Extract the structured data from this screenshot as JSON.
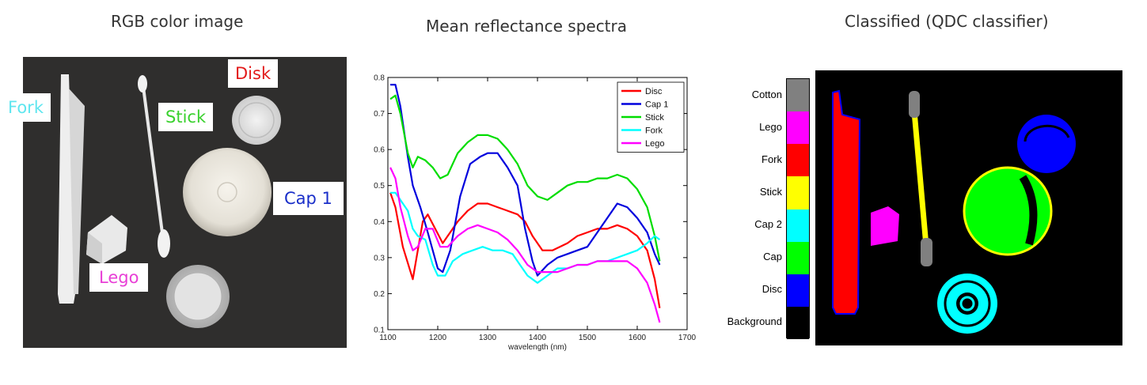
{
  "titles": {
    "photo": "RGB color image",
    "spectra": "Mean reflectance spectra",
    "classified": "Classified (QDC classifier)"
  },
  "photo_labels": {
    "fork": {
      "text": "Fork",
      "color": "#5fe6ef"
    },
    "stick": {
      "text": "Stick",
      "color": "#3ad12e"
    },
    "disk": {
      "text": "Disk",
      "color": "#e21a1a"
    },
    "cap1": {
      "text": "Cap 1",
      "color": "#1a2fc9"
    },
    "lego": {
      "text": "Lego",
      "color": "#e83fd6"
    }
  },
  "chart_data": {
    "type": "line",
    "title": "",
    "xlabel": "wavelength (nm)",
    "ylabel": "",
    "xlim": [
      1100,
      1700
    ],
    "ylim": [
      0.1,
      0.8
    ],
    "xticks": [
      1100,
      1200,
      1300,
      1400,
      1500,
      1600,
      1700
    ],
    "yticks": [
      0.1,
      0.2,
      0.3,
      0.4,
      0.5,
      0.6,
      0.7,
      0.8
    ],
    "legend_position": "top-right",
    "grid": false,
    "series": [
      {
        "name": "Disc",
        "color": "#ff0000",
        "x": [
          1105,
          1115,
          1130,
          1150,
          1160,
          1170,
          1180,
          1195,
          1210,
          1220,
          1240,
          1260,
          1280,
          1300,
          1320,
          1340,
          1360,
          1375,
          1390,
          1410,
          1430,
          1460,
          1480,
          1500,
          1520,
          1540,
          1560,
          1580,
          1600,
          1620,
          1635,
          1645
        ],
        "y": [
          0.48,
          0.44,
          0.33,
          0.24,
          0.32,
          0.4,
          0.42,
          0.38,
          0.34,
          0.36,
          0.4,
          0.43,
          0.45,
          0.45,
          0.44,
          0.43,
          0.42,
          0.4,
          0.36,
          0.32,
          0.32,
          0.34,
          0.36,
          0.37,
          0.38,
          0.38,
          0.39,
          0.38,
          0.36,
          0.32,
          0.24,
          0.16
        ]
      },
      {
        "name": "Cap 1",
        "color": "#0000dd",
        "x": [
          1105,
          1115,
          1125,
          1140,
          1150,
          1165,
          1180,
          1200,
          1210,
          1225,
          1245,
          1265,
          1285,
          1300,
          1320,
          1340,
          1360,
          1375,
          1390,
          1400,
          1420,
          1440,
          1460,
          1480,
          1500,
          1520,
          1540,
          1560,
          1580,
          1600,
          1620,
          1635,
          1645
        ],
        "y": [
          0.78,
          0.78,
          0.72,
          0.58,
          0.5,
          0.44,
          0.37,
          0.27,
          0.26,
          0.32,
          0.47,
          0.56,
          0.58,
          0.59,
          0.59,
          0.55,
          0.5,
          0.38,
          0.29,
          0.25,
          0.28,
          0.3,
          0.31,
          0.32,
          0.33,
          0.37,
          0.41,
          0.45,
          0.44,
          0.41,
          0.37,
          0.31,
          0.28
        ]
      },
      {
        "name": "Stick",
        "color": "#00dd00",
        "x": [
          1105,
          1115,
          1125,
          1140,
          1150,
          1160,
          1175,
          1190,
          1205,
          1220,
          1240,
          1260,
          1280,
          1300,
          1320,
          1340,
          1360,
          1380,
          1400,
          1420,
          1440,
          1460,
          1480,
          1500,
          1520,
          1540,
          1560,
          1580,
          1600,
          1620,
          1635,
          1645
        ],
        "y": [
          0.74,
          0.75,
          0.7,
          0.59,
          0.55,
          0.58,
          0.57,
          0.55,
          0.52,
          0.53,
          0.59,
          0.62,
          0.64,
          0.64,
          0.63,
          0.6,
          0.56,
          0.5,
          0.47,
          0.46,
          0.48,
          0.5,
          0.51,
          0.51,
          0.52,
          0.52,
          0.53,
          0.52,
          0.49,
          0.44,
          0.36,
          0.29
        ]
      },
      {
        "name": "Fork",
        "color": "#00ffff",
        "x": [
          1105,
          1115,
          1125,
          1140,
          1150,
          1160,
          1175,
          1190,
          1200,
          1215,
          1230,
          1250,
          1270,
          1290,
          1310,
          1330,
          1350,
          1365,
          1380,
          1400,
          1420,
          1440,
          1460,
          1480,
          1500,
          1520,
          1540,
          1560,
          1580,
          1600,
          1620,
          1635,
          1645
        ],
        "y": [
          0.48,
          0.48,
          0.46,
          0.43,
          0.38,
          0.36,
          0.35,
          0.28,
          0.25,
          0.25,
          0.29,
          0.31,
          0.32,
          0.33,
          0.32,
          0.32,
          0.31,
          0.28,
          0.25,
          0.23,
          0.25,
          0.27,
          0.27,
          0.28,
          0.28,
          0.29,
          0.29,
          0.3,
          0.31,
          0.32,
          0.34,
          0.36,
          0.35
        ]
      },
      {
        "name": "Lego",
        "color": "#ff00ff",
        "x": [
          1105,
          1115,
          1125,
          1140,
          1150,
          1160,
          1175,
          1190,
          1205,
          1220,
          1240,
          1260,
          1280,
          1300,
          1320,
          1340,
          1360,
          1380,
          1400,
          1420,
          1440,
          1460,
          1480,
          1500,
          1520,
          1540,
          1560,
          1580,
          1600,
          1620,
          1635,
          1645
        ],
        "y": [
          0.55,
          0.52,
          0.44,
          0.36,
          0.32,
          0.33,
          0.38,
          0.38,
          0.33,
          0.33,
          0.36,
          0.38,
          0.39,
          0.38,
          0.37,
          0.35,
          0.32,
          0.28,
          0.26,
          0.26,
          0.26,
          0.27,
          0.28,
          0.28,
          0.29,
          0.29,
          0.29,
          0.29,
          0.27,
          0.23,
          0.17,
          0.12
        ]
      }
    ]
  },
  "class_legend": [
    {
      "name": "Cotton",
      "color": "#808080"
    },
    {
      "name": "Lego",
      "color": "#ff00ff"
    },
    {
      "name": "Fork",
      "color": "#ff0000"
    },
    {
      "name": "Stick",
      "color": "#ffff00"
    },
    {
      "name": "Cap 2",
      "color": "#00ffff"
    },
    {
      "name": "Cap",
      "color": "#00ff00"
    },
    {
      "name": "Disc",
      "color": "#0000ff"
    },
    {
      "name": "Background",
      "color": "#000000"
    }
  ]
}
